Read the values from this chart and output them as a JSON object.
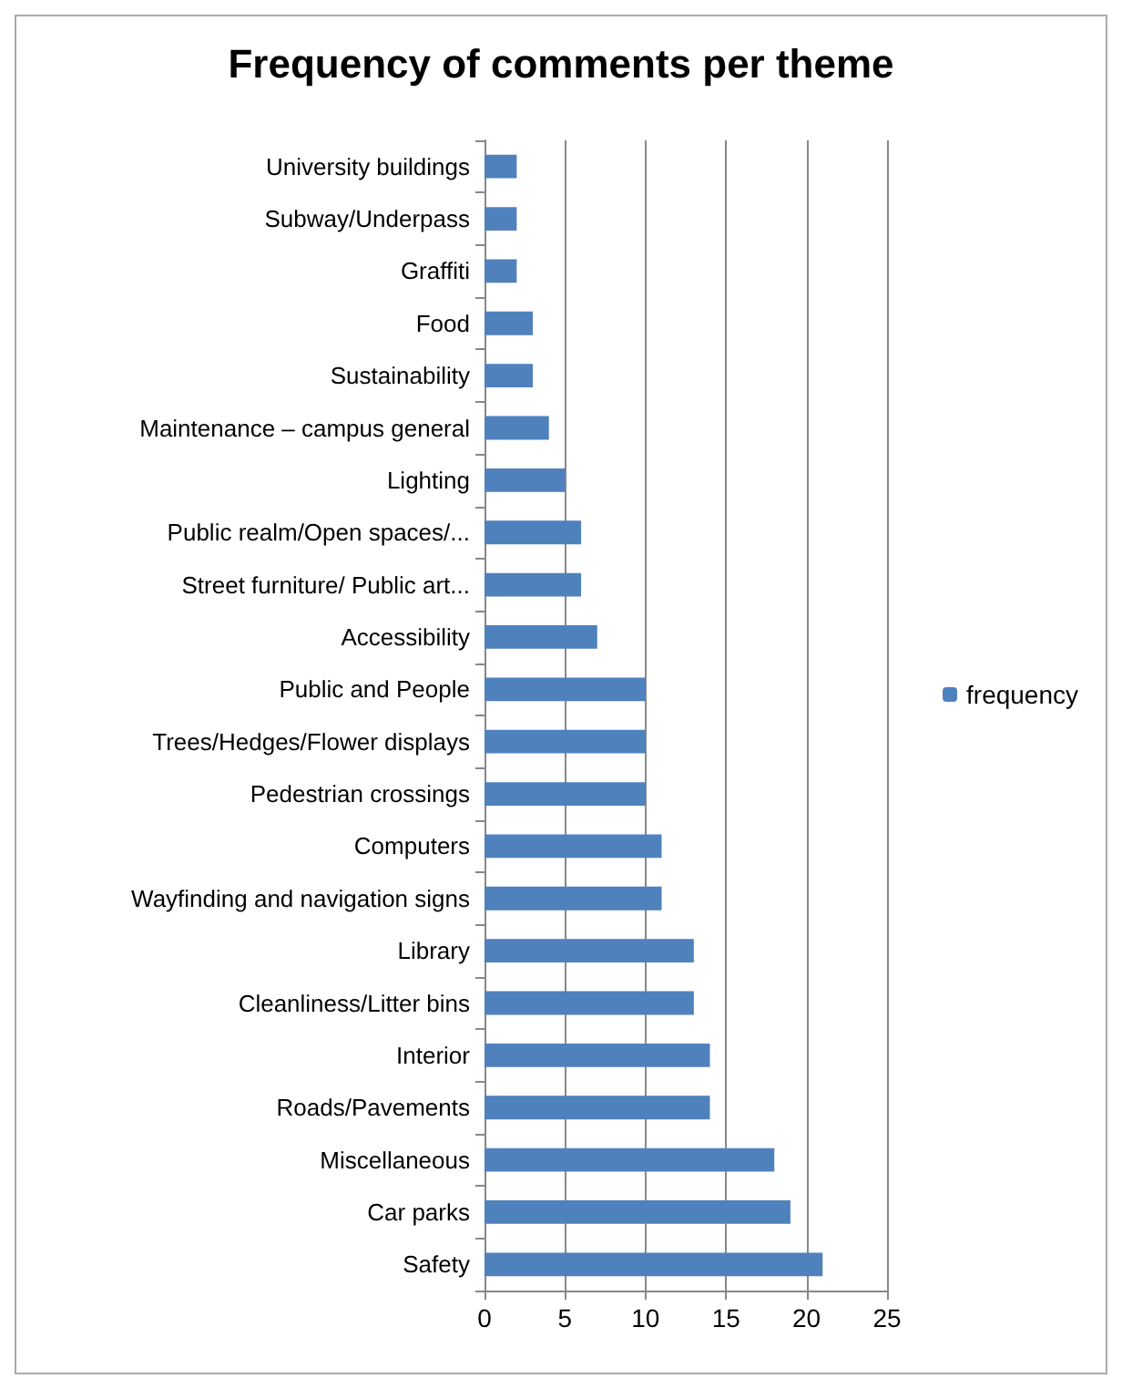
{
  "chart_data": {
    "type": "bar",
    "orientation": "horizontal",
    "title": "Frequency of comments per theme",
    "categories": [
      "University buildings",
      "Subway/Underpass",
      "Graffiti",
      "Food",
      "Sustainability",
      "Maintenance – campus general",
      "Lighting",
      "Public realm/Open spaces/...",
      "Street furniture/ Public art...",
      "Accessibility",
      "Public and People",
      "Trees/Hedges/Flower displays",
      "Pedestrian crossings",
      "Computers",
      "Wayfinding and navigation signs",
      "Library",
      "Cleanliness/Litter bins",
      "Interior",
      "Roads/Pavements",
      "Miscellaneous",
      "Car parks",
      "Safety"
    ],
    "series": [
      {
        "name": "frequency",
        "color": "#4f81bd",
        "values": [
          2,
          2,
          2,
          3,
          3,
          4,
          5,
          6,
          6,
          7,
          10,
          10,
          10,
          11,
          11,
          13,
          13,
          14,
          14,
          18,
          19,
          21
        ]
      }
    ],
    "xlim": [
      0,
      25
    ],
    "xticks": [
      0,
      5,
      10,
      15,
      20,
      25
    ],
    "grid": "x",
    "legend": "right"
  }
}
